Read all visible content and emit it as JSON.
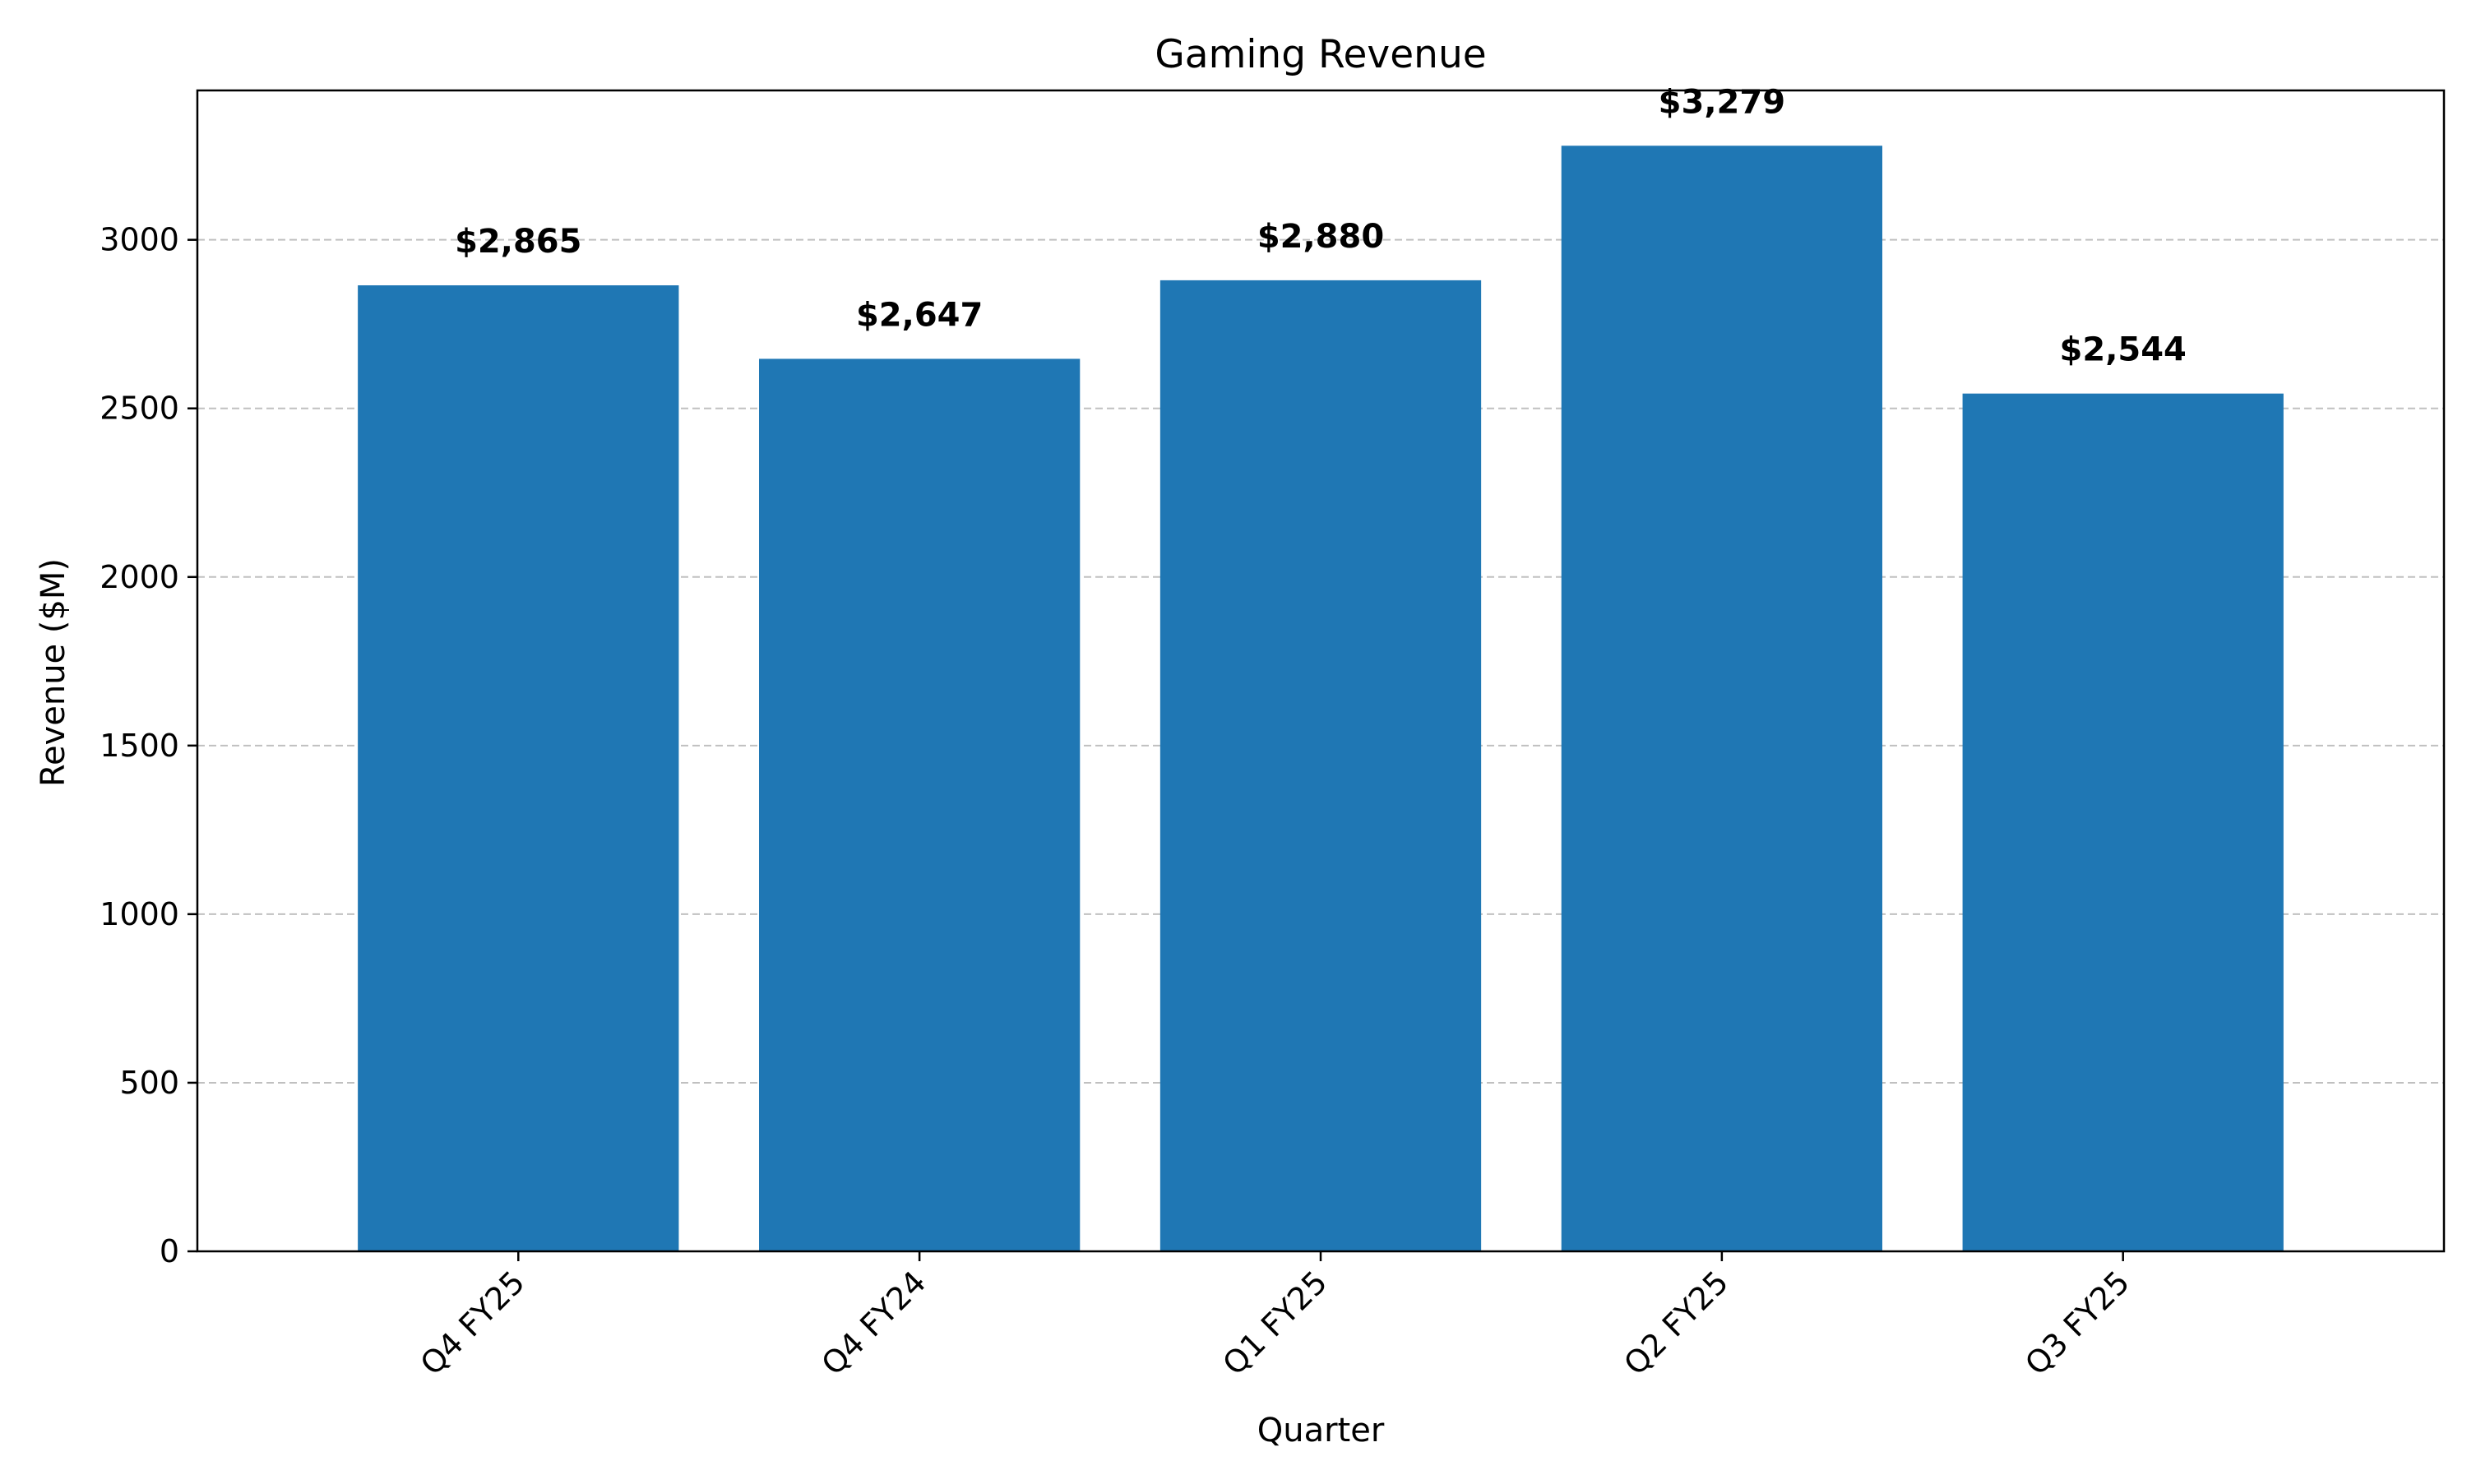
{
  "chart_data": {
    "type": "bar",
    "title": "Gaming Revenue",
    "xlabel": "Quarter",
    "ylabel": "Revenue ($M)",
    "categories": [
      "Q4 FY25",
      "Q4 FY24",
      "Q1 FY25",
      "Q2 FY25",
      "Q3 FY25"
    ],
    "values": [
      2865,
      2647,
      2880,
      3279,
      2544
    ],
    "value_labels": [
      "$2,865",
      "$2,647",
      "$2,880",
      "$3,279",
      "$2,544"
    ],
    "ylim": [
      0,
      3443
    ],
    "yticks": [
      0,
      500,
      1000,
      1500,
      2000,
      2500,
      3000
    ],
    "grid": "y dashed",
    "bar_color": "#1f77b4",
    "grid_color": "#c0c0c0"
  }
}
